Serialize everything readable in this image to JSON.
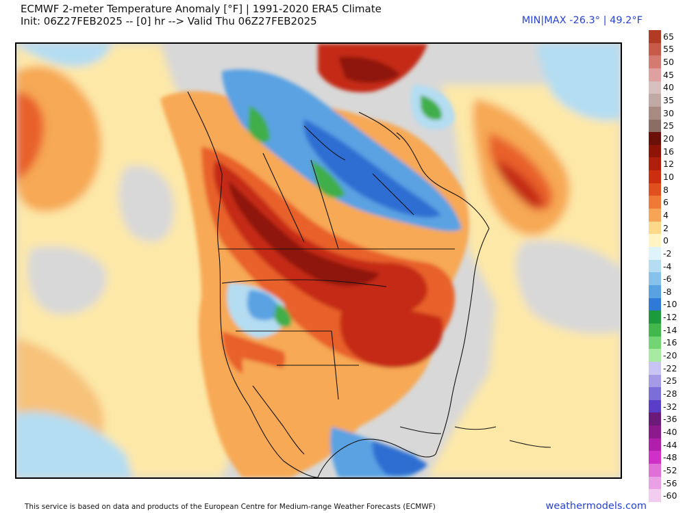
{
  "header": {
    "title_line1": "ECMWF 2-meter Temperature Anomaly [°F] | 1991-2020 ERA5 Climate",
    "title_line2": "Init: 06Z27FEB2025 -- [0] hr --> Valid Thu 06Z27FEB2025",
    "minmax": "MIN|MAX -26.3° | 49.2°F"
  },
  "colorbar": {
    "labels": [
      "65",
      "55",
      "50",
      "45",
      "40",
      "35",
      "30",
      "25",
      "20",
      "16",
      "12",
      "10",
      "8",
      "6",
      "4",
      "2",
      "0",
      "-2",
      "-4",
      "-6",
      "-8",
      "-10",
      "-12",
      "-14",
      "-16",
      "-20",
      "-22",
      "-25",
      "-28",
      "-32",
      "-36",
      "-40",
      "-44",
      "-48",
      "-52",
      "-56",
      "-60"
    ],
    "colors": [
      "#b23b24",
      "#c85a4a",
      "#d47a70",
      "#e0a0a0",
      "#d8c0c0",
      "#c2aaa4",
      "#a88c84",
      "#8a6e66",
      "#6a1008",
      "#8e1408",
      "#b01e0c",
      "#cc2e10",
      "#e0501e",
      "#ee7a36",
      "#f6a456",
      "#fcd88a",
      "#fff4c4",
      "#dff3fb",
      "#b4ddf2",
      "#86c2eb",
      "#58a2e2",
      "#2e7ad6",
      "#1c9a3c",
      "#42b84c",
      "#72d472",
      "#a8eaa2",
      "#c8c4f4",
      "#a49ae6",
      "#7c6ed8",
      "#5a3ec8",
      "#6c1a7a",
      "#8c1a8c",
      "#b01eac",
      "#d030c8",
      "#e070d8",
      "#eaa0e4",
      "#f2cdf0"
    ]
  },
  "map": {
    "region": "North America",
    "colors": {
      "neutral": "#d8d8d8",
      "warm_light": "#fde8a8",
      "warm": "#f7a955",
      "warmer": "#e8602a",
      "hot": "#c42a12",
      "very_hot": "#8e1408",
      "cold_light": "#b4ddf2",
      "cold": "#5aa2e2",
      "colder": "#2e6ed2",
      "green": "#3fae4a"
    }
  },
  "footer": {
    "credit": "This service is based on data and products of the European Centre for Medium-range Weather Forecasts (ECMWF)",
    "site": "weathermodels.com"
  }
}
